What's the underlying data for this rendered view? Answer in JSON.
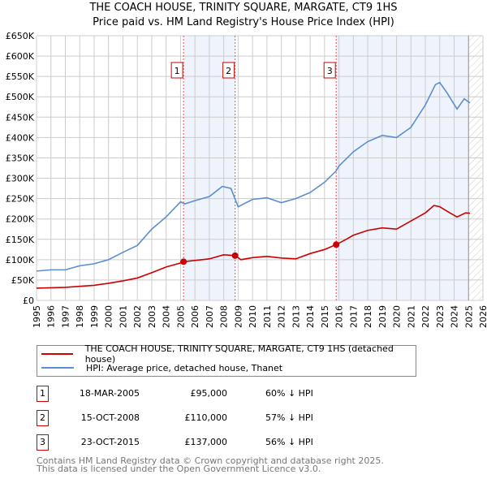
{
  "chart_data": {
    "type": "line",
    "title": "THE COACH HOUSE, TRINITY SQUARE, MARGATE, CT9 1HS",
    "subtitle": "Price paid vs. HM Land Registry's House Price Index (HPI)",
    "xlim": [
      1995,
      2026
    ],
    "ylim": [
      0,
      650000
    ],
    "x_ticks": [
      "1995",
      "1996",
      "1997",
      "1998",
      "1999",
      "2000",
      "2001",
      "2002",
      "2003",
      "2004",
      "2005",
      "2006",
      "2007",
      "2008",
      "2009",
      "2010",
      "2011",
      "2012",
      "2013",
      "2014",
      "2015",
      "2016",
      "2017",
      "2018",
      "2019",
      "2020",
      "2021",
      "2022",
      "2023",
      "2024",
      "2025",
      "2026"
    ],
    "y_ticks": [
      "£0",
      "£50K",
      "£100K",
      "£150K",
      "£200K",
      "£250K",
      "£300K",
      "£350K",
      "£400K",
      "£450K",
      "£500K",
      "£550K",
      "£600K",
      "£650K"
    ],
    "grid": true,
    "series": [
      {
        "name": "THE COACH HOUSE, TRINITY SQUARE, MARGATE, CT9 1HS (detached house)",
        "color": "#cc0000",
        "x": [
          1995,
          1997,
          1999,
          2000,
          2001,
          2002,
          2003,
          2004,
          2005,
          2005.21,
          2006,
          2007,
          2008,
          2008.79,
          2009.2,
          2010,
          2011,
          2012,
          2013,
          2014,
          2015,
          2015.81,
          2016.5,
          2017,
          2018,
          2019,
          2020,
          2021,
          2022,
          2022.6,
          2023,
          2023.7,
          2024.2,
          2024.8,
          2025.1
        ],
        "y": [
          30000,
          32000,
          37000,
          42000,
          48000,
          55000,
          68000,
          82000,
          92000,
          95000,
          98000,
          102000,
          112000,
          110000,
          100000,
          105000,
          108000,
          104000,
          102000,
          115000,
          125000,
          137000,
          150000,
          160000,
          172000,
          178000,
          175000,
          195000,
          215000,
          233000,
          230000,
          215000,
          205000,
          215000,
          214000
        ]
      },
      {
        "name": "HPI: Average price, detached house, Thanet",
        "color": "#5b8ed0",
        "x": [
          1995,
          1996,
          1997,
          1998,
          1999,
          2000,
          2001,
          2002,
          2003,
          2004,
          2005,
          2005.3,
          2006,
          2007,
          2007.9,
          2008.5,
          2009,
          2010,
          2011,
          2012,
          2013,
          2014,
          2015,
          2015.8,
          2016,
          2017,
          2018,
          2019,
          2020,
          2021,
          2022,
          2022.7,
          2023,
          2023.5,
          2024.2,
          2024.7,
          2025.1
        ],
        "y": [
          72000,
          75000,
          75000,
          85000,
          90000,
          100000,
          118000,
          135000,
          175000,
          205000,
          242000,
          237000,
          245000,
          255000,
          280000,
          275000,
          230000,
          248000,
          252000,
          240000,
          250000,
          265000,
          290000,
          318000,
          330000,
          365000,
          390000,
          405000,
          400000,
          425000,
          480000,
          530000,
          535000,
          510000,
          470000,
          495000,
          485000
        ]
      }
    ],
    "sales": [
      {
        "label": "1",
        "date": "18-MAR-2005",
        "x": 2005.21,
        "price": "£95,000",
        "value": 95000,
        "hpi": "60% ↓ HPI"
      },
      {
        "label": "2",
        "date": "15-OCT-2008",
        "x": 2008.79,
        "price": "£110,000",
        "value": 110000,
        "hpi": "57% ↓ HPI"
      },
      {
        "label": "3",
        "date": "23-OCT-2015",
        "x": 2015.81,
        "price": "£137,000",
        "value": 137000,
        "hpi": "56% ↓ HPI"
      }
    ],
    "shaded_ranges": [
      [
        2005.21,
        2008.79
      ],
      [
        2015.81,
        2025.0
      ]
    ],
    "hatched_from": 2025.0,
    "legend_placement": "below"
  },
  "footer": [
    "Contains HM Land Registry data © Crown copyright and database right 2025.",
    "This data is licensed under the Open Government Licence v3.0."
  ]
}
